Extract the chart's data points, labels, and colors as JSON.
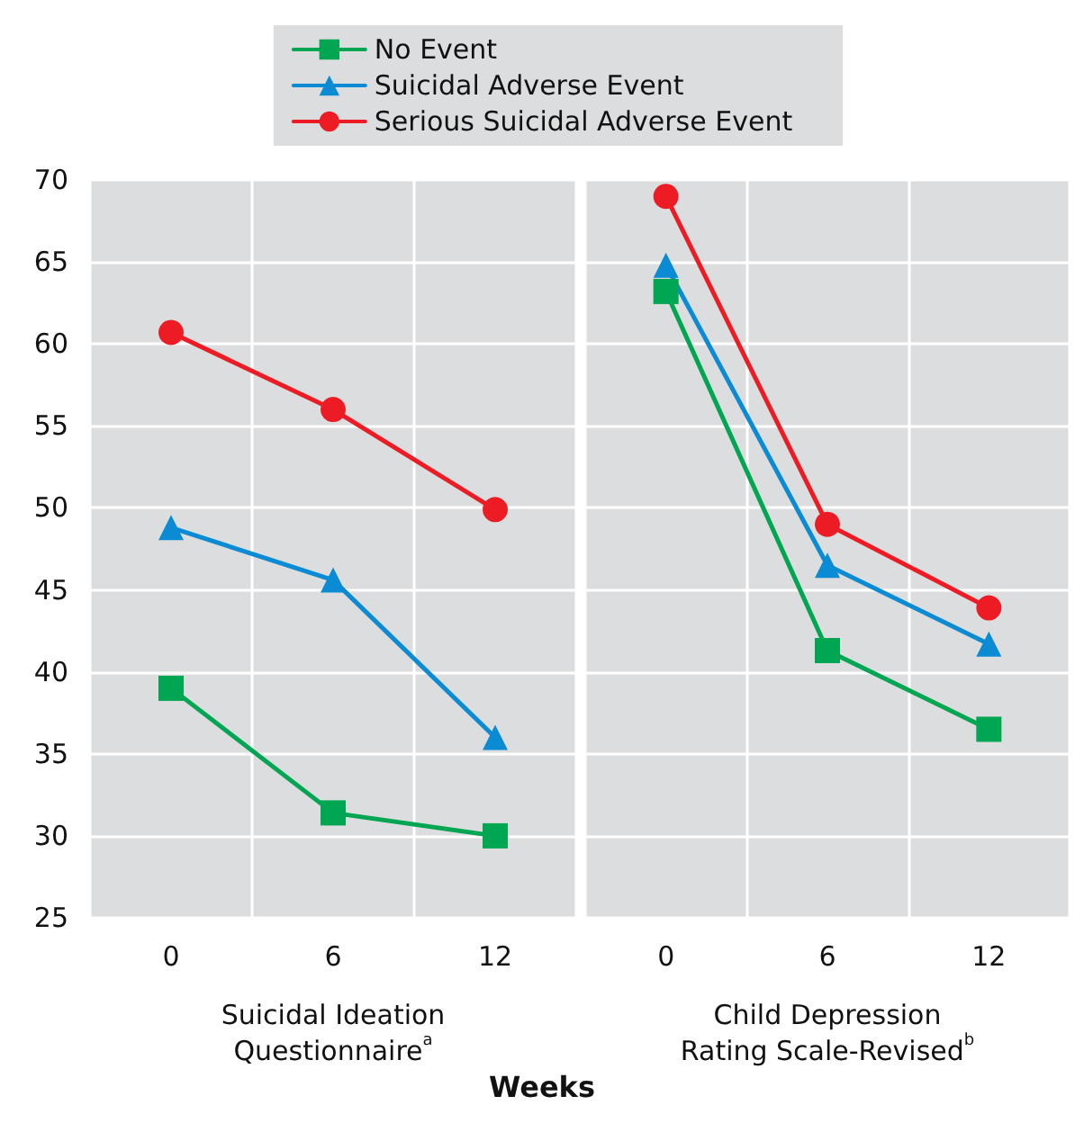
{
  "chart_data": [
    {
      "type": "line",
      "xlabel": "Suicidal Ideation\nQuestionnaire$^{a}$",
      "categories": [
        "0",
        "6",
        "12"
      ],
      "ylim": [
        25,
        70
      ],
      "yticks": [
        25,
        30,
        35,
        40,
        45,
        50,
        55,
        60,
        65,
        70
      ],
      "grid": true,
      "legend": "top",
      "annotations": [
        "Weeks"
      ],
      "series": [
        {
          "name": "No Event",
          "color": "#00a651",
          "marker": "square",
          "values": [
            39,
            31.4,
            30
          ]
        },
        {
          "name": "Suicidal Adverse Event",
          "color": "#0a8bd3",
          "marker": "triangle",
          "values": [
            48.8,
            45.6,
            36
          ]
        },
        {
          "name": "Serious Suicidal Adverse Event",
          "color": "#ed1c24",
          "marker": "circle",
          "values": [
            60.7,
            56,
            49.9
          ]
        }
      ]
    },
    {
      "type": "line",
      "xlabel": "Child Depression\nRating Scale-Revised$^{b}$",
      "categories": [
        "0",
        "6",
        "12"
      ],
      "ylim": [
        25,
        70
      ],
      "yticks": [
        25,
        30,
        35,
        40,
        45,
        50,
        55,
        60,
        65,
        70
      ],
      "grid": true,
      "tick_labels": "x",
      "series": [
        {
          "color": "#00a651",
          "marker": "square",
          "values": [
            63.2,
            41.3,
            36.5
          ]
        },
        {
          "color": "#0a8bd3",
          "marker": "triangle",
          "values": [
            64.8,
            46.5,
            41.7
          ]
        },
        {
          "color": "#ed1c24",
          "marker": "circle",
          "values": [
            69,
            49,
            43.9
          ]
        }
      ]
    }
  ]
}
